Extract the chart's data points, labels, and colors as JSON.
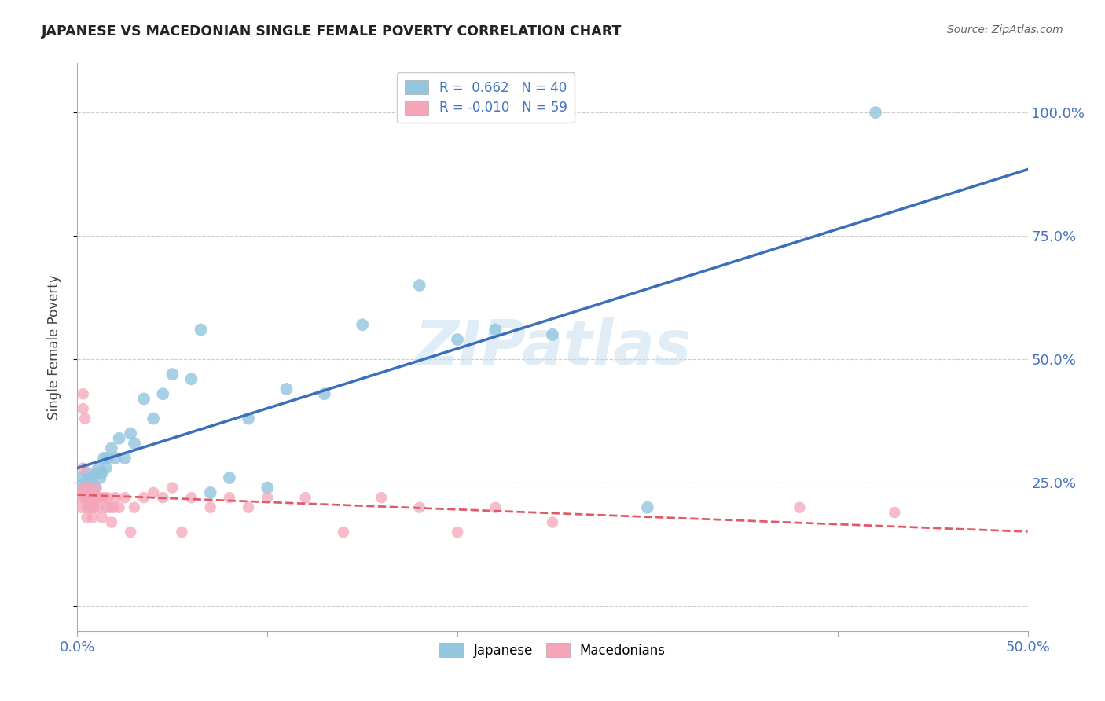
{
  "title": "JAPANESE VS MACEDONIAN SINGLE FEMALE POVERTY CORRELATION CHART",
  "source": "Source: ZipAtlas.com",
  "ylabel": "Single Female Poverty",
  "xlim": [
    0.0,
    0.5
  ],
  "ylim": [
    -0.05,
    1.1
  ],
  "yticks": [
    0.0,
    0.25,
    0.5,
    0.75,
    1.0
  ],
  "ytick_labels": [
    "",
    "25.0%",
    "50.0%",
    "75.0%",
    "100.0%"
  ],
  "watermark": "ZIPatlas",
  "japanese_color": "#92C5DE",
  "macedonian_color": "#F4A6B8",
  "trend_japanese_color": "#3B6EBB",
  "trend_macedonian_color": "#E05A6A",
  "bg_color": "#ffffff",
  "grid_color": "#cccccc",
  "japanese_x": [
    0.002,
    0.003,
    0.004,
    0.005,
    0.006,
    0.007,
    0.008,
    0.009,
    0.01,
    0.011,
    0.012,
    0.013,
    0.014,
    0.015,
    0.016,
    0.018,
    0.02,
    0.022,
    0.025,
    0.028,
    0.03,
    0.035,
    0.04,
    0.045,
    0.05,
    0.06,
    0.065,
    0.07,
    0.08,
    0.09,
    0.1,
    0.11,
    0.13,
    0.15,
    0.18,
    0.2,
    0.22,
    0.25,
    0.3,
    0.42
  ],
  "japanese_y": [
    0.26,
    0.24,
    0.25,
    0.27,
    0.23,
    0.26,
    0.25,
    0.24,
    0.27,
    0.28,
    0.26,
    0.27,
    0.3,
    0.28,
    0.3,
    0.32,
    0.3,
    0.34,
    0.3,
    0.35,
    0.33,
    0.42,
    0.38,
    0.43,
    0.47,
    0.46,
    0.56,
    0.23,
    0.26,
    0.38,
    0.24,
    0.44,
    0.43,
    0.57,
    0.65,
    0.54,
    0.56,
    0.55,
    0.2,
    1.0
  ],
  "macedonian_x": [
    0.001,
    0.002,
    0.002,
    0.003,
    0.003,
    0.003,
    0.004,
    0.004,
    0.004,
    0.005,
    0.005,
    0.005,
    0.005,
    0.006,
    0.006,
    0.006,
    0.007,
    0.007,
    0.008,
    0.008,
    0.008,
    0.009,
    0.009,
    0.01,
    0.01,
    0.011,
    0.011,
    0.012,
    0.013,
    0.014,
    0.015,
    0.016,
    0.017,
    0.018,
    0.019,
    0.02,
    0.022,
    0.025,
    0.028,
    0.03,
    0.035,
    0.04,
    0.045,
    0.05,
    0.055,
    0.06,
    0.07,
    0.08,
    0.09,
    0.1,
    0.12,
    0.14,
    0.16,
    0.18,
    0.2,
    0.22,
    0.25,
    0.38,
    0.43
  ],
  "macedonian_y": [
    0.23,
    0.22,
    0.2,
    0.43,
    0.4,
    0.28,
    0.38,
    0.24,
    0.22,
    0.24,
    0.22,
    0.2,
    0.18,
    0.24,
    0.22,
    0.2,
    0.23,
    0.21,
    0.22,
    0.2,
    0.18,
    0.22,
    0.2,
    0.24,
    0.22,
    0.22,
    0.2,
    0.22,
    0.18,
    0.22,
    0.2,
    0.22,
    0.2,
    0.17,
    0.2,
    0.22,
    0.2,
    0.22,
    0.15,
    0.2,
    0.22,
    0.23,
    0.22,
    0.24,
    0.15,
    0.22,
    0.2,
    0.22,
    0.2,
    0.22,
    0.22,
    0.15,
    0.22,
    0.2,
    0.15,
    0.2,
    0.17,
    0.2,
    0.19
  ]
}
